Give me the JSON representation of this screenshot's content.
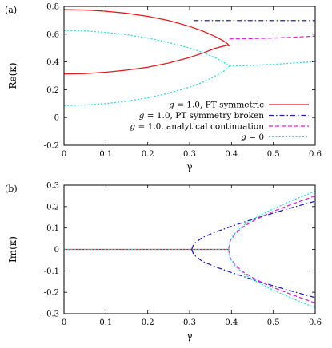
{
  "chart_data": [
    {
      "type": "line",
      "panel_label": "(a)",
      "xlabel": "γ",
      "ylabel": "Re(κ)",
      "xlim": [
        0,
        0.6
      ],
      "ylim": [
        -0.2,
        0.8
      ],
      "xticks": [
        "0",
        "0.1",
        "0.2",
        "0.3",
        "0.4",
        "0.5",
        "0.6"
      ],
      "yticks": [
        "-0.2",
        "0",
        "0.2",
        "0.4",
        "0.6",
        "0.8"
      ],
      "grid": false,
      "legend_position": "bottom-right",
      "legend": [
        {
          "prefix": "g",
          "text": " = 1.0, PT symmetric",
          "color": "#e41a1c",
          "dash": "solid"
        },
        {
          "prefix": "g",
          "text": " = 1.0, PT symmetry broken",
          "color": "#2020c0",
          "dash": "dashdot"
        },
        {
          "prefix": "g",
          "text": " = 1.0, analytical continuation",
          "color": "#e020e0",
          "dash": "dashed"
        },
        {
          "prefix": "g",
          "text": " = 0",
          "color": "#20e0e0",
          "dash": "dotted"
        }
      ],
      "series": [
        {
          "color": "#e41a1c",
          "dash": "solid",
          "x": [
            0,
            0.05,
            0.1,
            0.15,
            0.2,
            0.25,
            0.3,
            0.33,
            0.36,
            0.38,
            0.39,
            0.395
          ],
          "y": [
            0.777,
            0.774,
            0.765,
            0.75,
            0.728,
            0.698,
            0.656,
            0.624,
            0.585,
            0.553,
            0.532,
            0.515
          ]
        },
        {
          "color": "#e41a1c",
          "dash": "solid",
          "x": [
            0,
            0.05,
            0.1,
            0.15,
            0.2,
            0.25,
            0.3,
            0.33,
            0.36,
            0.38,
            0.39,
            0.395
          ],
          "y": [
            0.313,
            0.316,
            0.326,
            0.341,
            0.362,
            0.392,
            0.432,
            0.462,
            0.497,
            0.513,
            0.52,
            0.515
          ]
        },
        {
          "color": "#2020c0",
          "dash": "dashdot",
          "x": [
            0.31,
            0.6
          ],
          "y": [
            0.698,
            0.698
          ]
        },
        {
          "color": "#e020e0",
          "dash": "dashed",
          "x": [
            0.395,
            0.45,
            0.5,
            0.55,
            0.6
          ],
          "y": [
            0.566,
            0.568,
            0.572,
            0.578,
            0.586
          ]
        },
        {
          "color": "#20e0e0",
          "dash": "dotted",
          "x": [
            0,
            0.05,
            0.1,
            0.15,
            0.2,
            0.25,
            0.3,
            0.33,
            0.36,
            0.38,
            0.39,
            0.395
          ],
          "y": [
            0.627,
            0.623,
            0.613,
            0.596,
            0.572,
            0.54,
            0.5,
            0.47,
            0.432,
            0.4,
            0.38,
            0.37
          ]
        },
        {
          "color": "#20e0e0",
          "dash": "dotted",
          "x": [
            0,
            0.05,
            0.1,
            0.15,
            0.2,
            0.25,
            0.3,
            0.33,
            0.36,
            0.38,
            0.39,
            0.395
          ],
          "y": [
            0.086,
            0.09,
            0.1,
            0.117,
            0.142,
            0.175,
            0.218,
            0.252,
            0.295,
            0.33,
            0.352,
            0.37
          ]
        },
        {
          "color": "#20e0e0",
          "dash": "dotted",
          "x": [
            0.395,
            0.45,
            0.5,
            0.55,
            0.6
          ],
          "y": [
            0.37,
            0.375,
            0.382,
            0.392,
            0.402
          ]
        }
      ]
    },
    {
      "type": "line",
      "panel_label": "(b)",
      "xlabel": "γ",
      "ylabel": "Im(κ)",
      "xlim": [
        0,
        0.6
      ],
      "ylim": [
        -0.3,
        0.3
      ],
      "xticks": [
        "0",
        "0.1",
        "0.2",
        "0.3",
        "0.4",
        "0.5",
        "0.6"
      ],
      "yticks": [
        "-0.3",
        "-0.2",
        "-0.1",
        "0",
        "0.1",
        "0.2",
        "0.3"
      ],
      "grid": false,
      "series": [
        {
          "color": "#e41a1c",
          "dash": "solid",
          "x": [
            0,
            0.395
          ],
          "y": [
            0,
            0
          ]
        },
        {
          "color": "#20e0e0",
          "dash": "dotted",
          "x": [
            0,
            0.395
          ],
          "y": [
            0,
            0
          ]
        },
        {
          "color": "#2020c0",
          "dash": "dashdot",
          "x": [
            0.305,
            0.31,
            0.33,
            0.36,
            0.4,
            0.45,
            0.5,
            0.55,
            0.6
          ],
          "y": [
            0,
            0.025,
            0.055,
            0.08,
            0.108,
            0.14,
            0.17,
            0.198,
            0.225
          ]
        },
        {
          "color": "#2020c0",
          "dash": "dashdot",
          "x": [
            0.305,
            0.31,
            0.33,
            0.36,
            0.4,
            0.45,
            0.5,
            0.55,
            0.6
          ],
          "y": [
            0,
            -0.025,
            -0.055,
            -0.08,
            -0.108,
            -0.14,
            -0.17,
            -0.198,
            -0.225
          ]
        },
        {
          "color": "#e020e0",
          "dash": "dashed",
          "x": [
            0.393,
            0.397,
            0.41,
            0.43,
            0.46,
            0.5,
            0.55,
            0.6
          ],
          "y": [
            0,
            0.04,
            0.075,
            0.108,
            0.142,
            0.178,
            0.215,
            0.25
          ]
        },
        {
          "color": "#e020e0",
          "dash": "dashed",
          "x": [
            0.393,
            0.397,
            0.41,
            0.43,
            0.46,
            0.5,
            0.55,
            0.6
          ],
          "y": [
            0,
            -0.04,
            -0.075,
            -0.108,
            -0.142,
            -0.178,
            -0.215,
            -0.25
          ]
        },
        {
          "color": "#20e0e0",
          "dash": "dotted",
          "x": [
            0.393,
            0.397,
            0.41,
            0.43,
            0.46,
            0.5,
            0.55,
            0.6
          ],
          "y": [
            0,
            0.042,
            0.08,
            0.115,
            0.15,
            0.19,
            0.233,
            0.272
          ]
        },
        {
          "color": "#20e0e0",
          "dash": "dotted",
          "x": [
            0.393,
            0.397,
            0.41,
            0.43,
            0.46,
            0.5,
            0.55,
            0.6
          ],
          "y": [
            0,
            -0.042,
            -0.08,
            -0.115,
            -0.15,
            -0.19,
            -0.233,
            -0.272
          ]
        }
      ]
    }
  ]
}
